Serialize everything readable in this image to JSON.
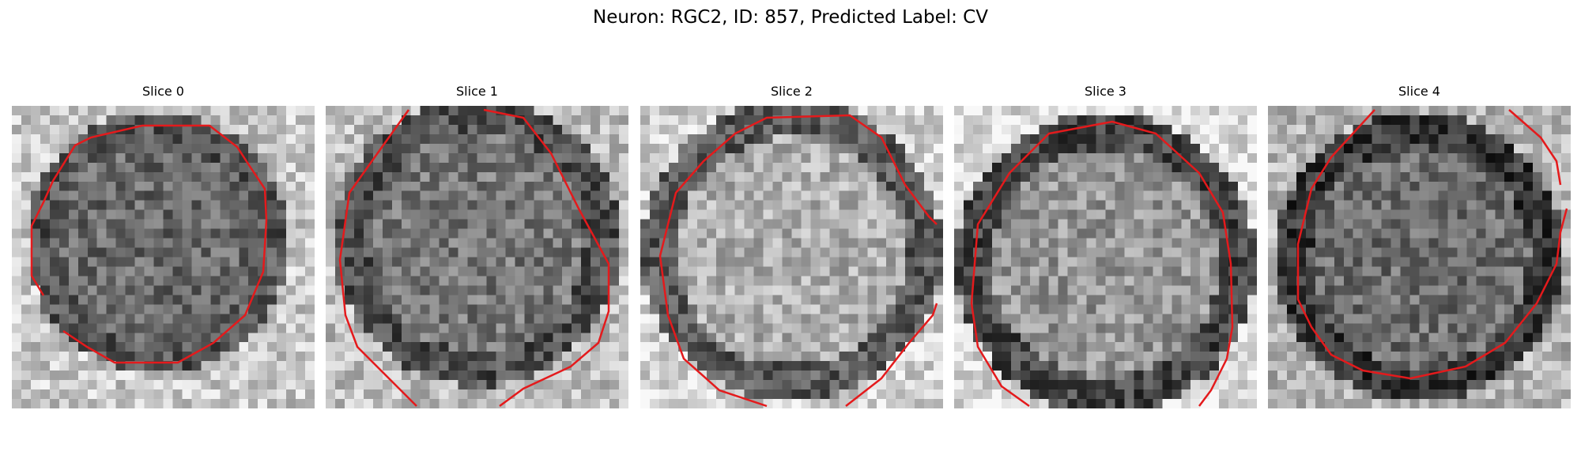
{
  "figure": {
    "suptitle": "Neuron: RGC2, ID: 857, Predicted Label: CV"
  },
  "panels": [
    {
      "title": "Slice 0"
    },
    {
      "title": "Slice 1"
    },
    {
      "title": "Slice 2"
    },
    {
      "title": "Slice 3"
    },
    {
      "title": "Slice 4"
    }
  ],
  "colors": {
    "contour": "#e41a1c",
    "background": "#ffffff"
  }
}
